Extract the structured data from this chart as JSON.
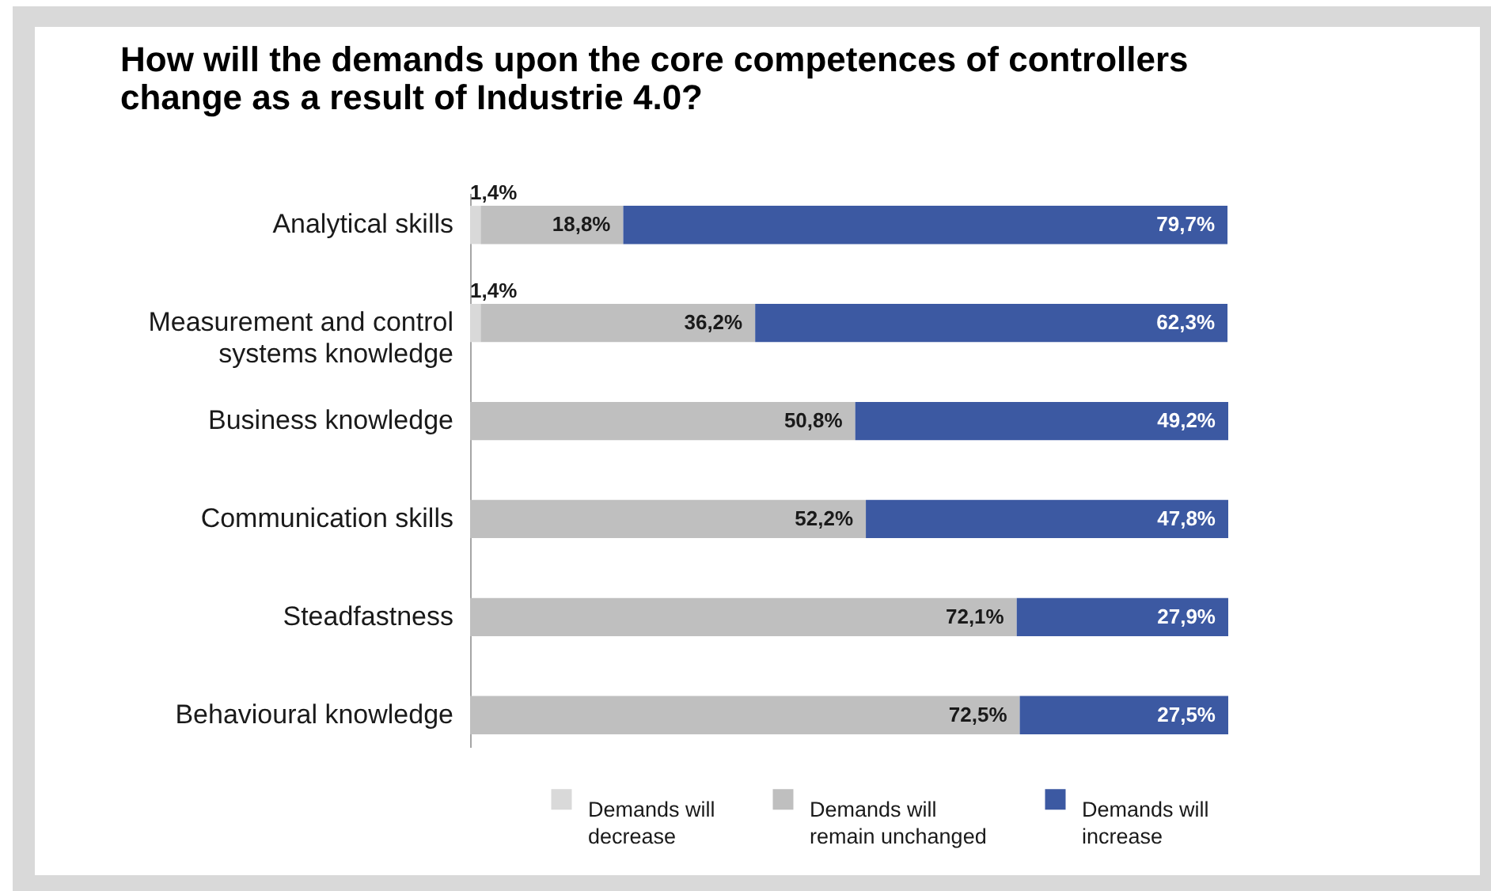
{
  "chart_data": {
    "type": "bar",
    "orientation": "horizontal",
    "stacked": true,
    "title": "How will the demands upon the core competences of controllers change as a result of Industrie 4.0?",
    "categories": [
      "Analytical skills",
      "Measurement and control systems knowledge",
      "Business knowledge",
      "Communication skills",
      "Steadfastness",
      "Behavioural knowledge"
    ],
    "series": [
      {
        "name": "Demands will decrease",
        "color": "#d9d9d9",
        "values": [
          1.4,
          1.4,
          null,
          null,
          null,
          null
        ],
        "value_labels": [
          "1,4%",
          "1,4%",
          null,
          null,
          null,
          null
        ]
      },
      {
        "name": "Demands will remain unchanged",
        "color": "#bfbfbf",
        "values": [
          18.8,
          36.2,
          50.8,
          52.2,
          72.1,
          72.5
        ],
        "value_labels": [
          "18,8%",
          "36,2%",
          "50,8%",
          "52,2%",
          "72,1%",
          "72,5%"
        ]
      },
      {
        "name": "Demands will increase",
        "color": "#3c59a2",
        "values": [
          79.7,
          62.3,
          49.2,
          47.8,
          27.9,
          27.5
        ],
        "value_labels": [
          "79,7%",
          "62,3%",
          "49,2%",
          "47,8%",
          "27,9%",
          "27,5%"
        ]
      }
    ],
    "xlim": [
      0,
      100
    ],
    "tick_labels": "y",
    "legend": "bottom"
  }
}
